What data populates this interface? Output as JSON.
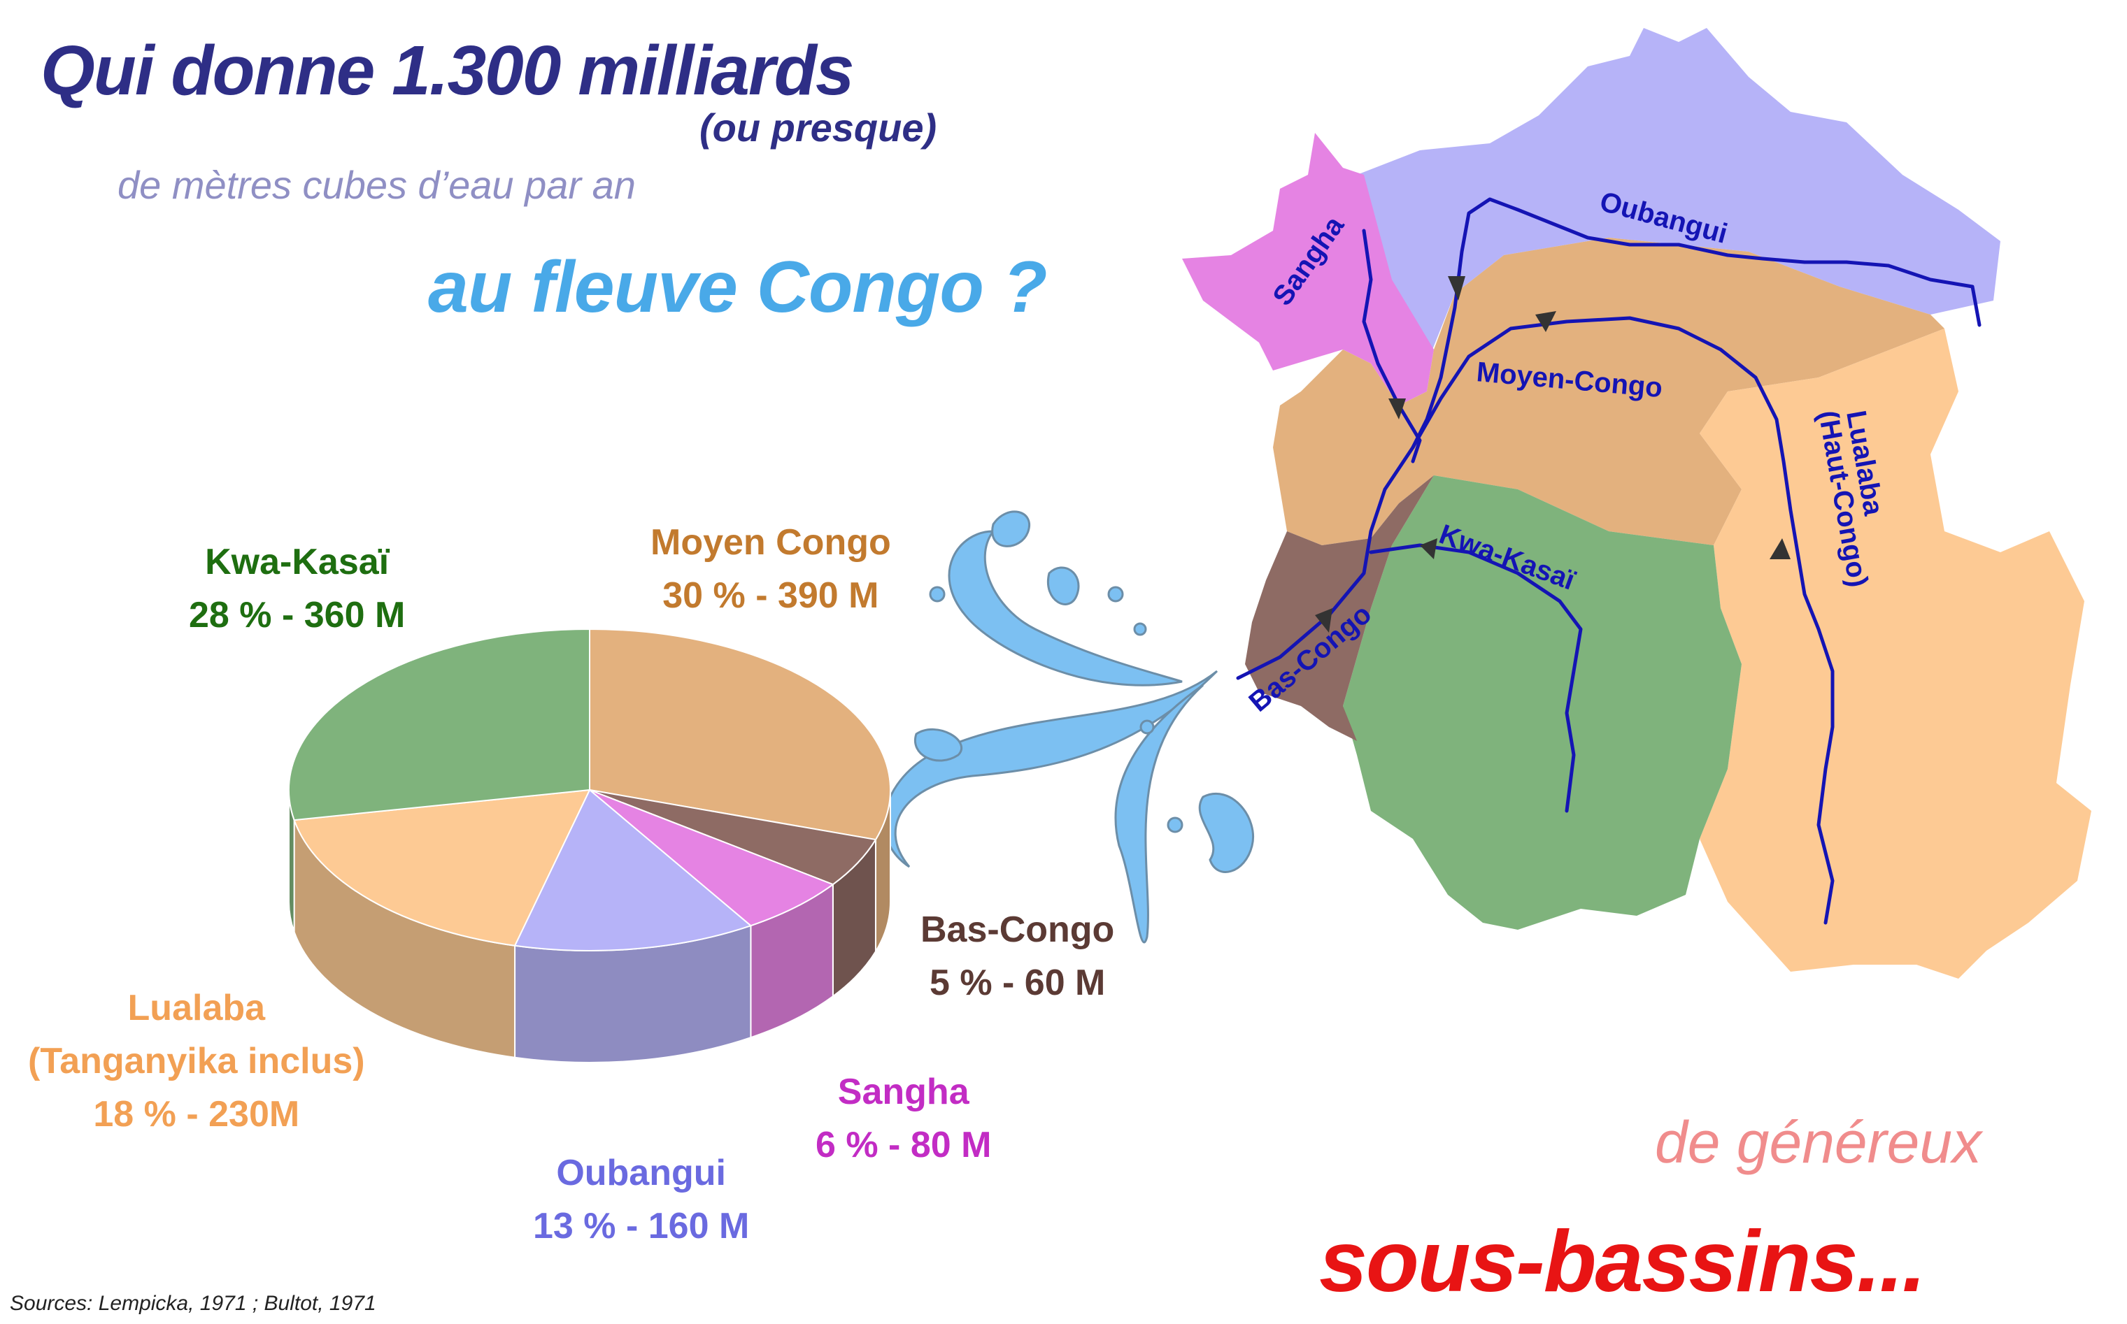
{
  "title": {
    "main": "Qui donne 1.300 milliards",
    "parenthetical": "(ou presque)",
    "subtitle": "de mètres cubes d’eau par an",
    "destination": "au fleuve Congo ?"
  },
  "footer": {
    "line1": "de généreux",
    "line2": "sous-bassins...",
    "sources": "Sources: Lempicka, 1971 ; Bultot, 1971"
  },
  "chart_data": {
    "type": "pie",
    "unit": "M",
    "slices": [
      {
        "name": "Moyen Congo",
        "percent": 30,
        "volume_label": "390 M",
        "color": "#e3b17e"
      },
      {
        "name": "Bas-Congo",
        "percent": 5,
        "volume_label": "60 M",
        "color": "#8e6b64"
      },
      {
        "name": "Sangha",
        "percent": 6,
        "volume_label": "80 M",
        "color": "#e583e3"
      },
      {
        "name": "Oubangui",
        "percent": 13,
        "volume_label": "160 M",
        "color": "#b6b3f8"
      },
      {
        "name": "Lualaba",
        "name_extra": "(Tanganyika inclus)",
        "percent": 18,
        "volume_label": "230M",
        "color": "#fdca94"
      },
      {
        "name": "Kwa-Kasaï",
        "percent": 28,
        "volume_label": "360 M",
        "color": "#7fb37c"
      }
    ],
    "labels": [
      {
        "line1": "Moyen Congo",
        "line2": "30 % - 390 M",
        "color": "#c27a2e"
      },
      {
        "line1": "Bas-Congo",
        "line2": "5 % - 60 M",
        "color": "#5b3a34"
      },
      {
        "line1": "Sangha",
        "line2": "6 % - 80 M",
        "color": "#c22cc4"
      },
      {
        "line1": "Oubangui",
        "line2": "13 % - 160 M",
        "color": "#6a6ae0"
      },
      {
        "line1": "Lualaba",
        "line2": "(Tanganyika inclus)",
        "line3": "18 % - 230M",
        "color": "#f2a054"
      },
      {
        "line1": "Kwa-Kasaï",
        "line2": "28 %  - 360 M",
        "color": "#1e6e10"
      }
    ]
  },
  "map": {
    "river_labels": [
      "Oubangui",
      "Sangha",
      "Moyen-Congo",
      "Lualaba",
      "(Haut-Congo)",
      "Kwa-Kasaï",
      "Bas-Congo"
    ],
    "colors": {
      "oubangui": "#b6b3f8",
      "sangha": "#e583e3",
      "moyen_congo": "#e3b17e",
      "lualaba": "#fdca94",
      "kwa_kasai": "#7fb37c",
      "bas_congo": "#8e6b64",
      "river": "#1414b4",
      "splash": "#7cc0f2"
    }
  }
}
